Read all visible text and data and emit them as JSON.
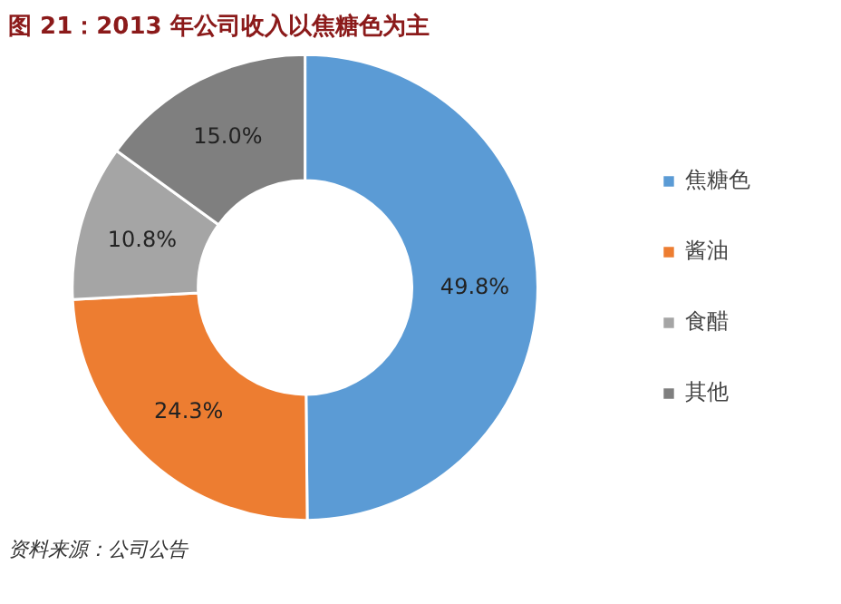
{
  "chart_data": {
    "type": "donut",
    "title": "图 21：2013 年公司收入以焦糖色为主",
    "categories": [
      "焦糖色",
      "酱油",
      "食醋",
      "其他"
    ],
    "values": [
      49.8,
      24.3,
      10.8,
      15.0
    ],
    "colors": [
      "#5b9bd5",
      "#ed7d31",
      "#a5a5a5",
      "#7f7f7f"
    ],
    "value_labels": [
      "49.8%",
      "24.3%",
      "10.8%",
      "15.0%"
    ],
    "legend": "right",
    "annotations": [
      "资料来源：公司公告"
    ]
  }
}
